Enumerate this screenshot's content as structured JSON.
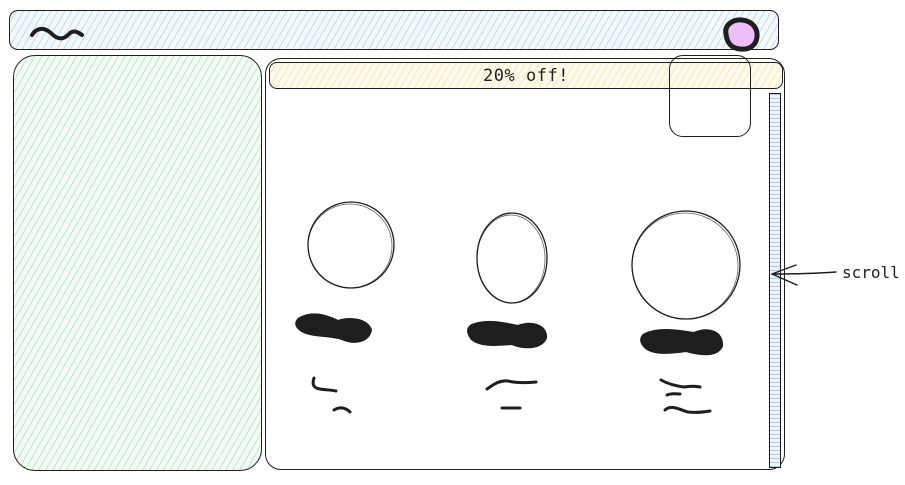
{
  "promo_banner": {
    "text": "20% off!"
  },
  "annotation": {
    "scroll_label": "scroll"
  },
  "icons": {
    "logo": "squiggle-logo-icon",
    "avatar": "avatar-icon",
    "annotation_arrow": "arrow-left-icon"
  },
  "products": [
    {
      "name": "product-card-1"
    },
    {
      "name": "product-card-2"
    },
    {
      "name": "product-card-3"
    }
  ],
  "colors": {
    "header_fill": "#a5d8ff",
    "sidebar_fill": "#b2f2bb",
    "banner_fill": "#ffec99",
    "scrollbar_fill": "#c5d9f0",
    "avatar_fill": "#eebefa",
    "stroke": "#1e1e1e"
  }
}
